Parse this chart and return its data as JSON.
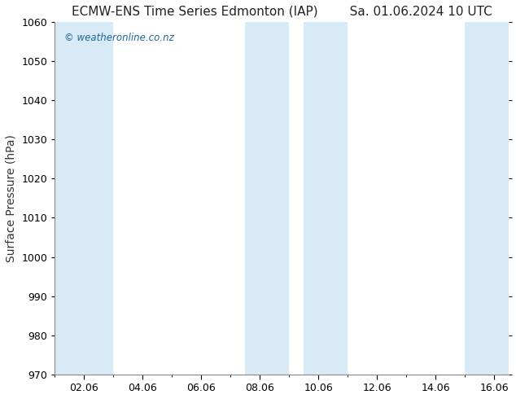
{
  "title_left": "ECMW-ENS Time Series Edmonton (IAP)",
  "title_right": "Sa. 01.06.2024 10 UTC",
  "ylabel": "Surface Pressure (hPa)",
  "ylim": [
    970,
    1060
  ],
  "yticks": [
    970,
    980,
    990,
    1000,
    1010,
    1020,
    1030,
    1040,
    1050,
    1060
  ],
  "xlim_start": 1,
  "xlim_end": 16.5,
  "xtick_labels": [
    "02.06",
    "04.06",
    "06.06",
    "08.06",
    "10.06",
    "12.06",
    "14.06",
    "16.06"
  ],
  "xtick_positions": [
    2,
    4,
    6,
    8,
    10,
    12,
    14,
    16
  ],
  "watermark": "© weatheronline.co.nz",
  "watermark_color": "#1a6699",
  "bg_color": "#ffffff",
  "plot_bg_color": "#ffffff",
  "shaded_bands": [
    {
      "x_start": 1.0,
      "x_end": 3.0,
      "color": "#d9eaf7"
    },
    {
      "x_start": 7.5,
      "x_end": 9.0,
      "color": "#d9eaf7"
    },
    {
      "x_start": 9.5,
      "x_end": 11.0,
      "color": "#d9eaf7"
    },
    {
      "x_start": 15.0,
      "x_end": 16.5,
      "color": "#d9eaf7"
    }
  ],
  "title_fontsize": 11,
  "tick_fontsize": 9,
  "ylabel_fontsize": 10
}
